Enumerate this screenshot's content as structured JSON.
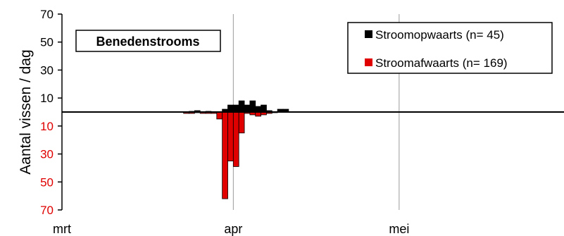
{
  "chart_data": {
    "type": "bar",
    "title": "Benedenstrooms",
    "ylabel": "Aantal vissen / dag",
    "ylim": [
      -70,
      70
    ],
    "y_ticks": [
      {
        "value": 70,
        "label": "70",
        "color": "#000000"
      },
      {
        "value": 50,
        "label": "50",
        "color": "#000000"
      },
      {
        "value": 30,
        "label": "30",
        "color": "#000000"
      },
      {
        "value": 10,
        "label": "10",
        "color": "#000000"
      },
      {
        "value": -10,
        "label": "10",
        "color": "#e00000"
      },
      {
        "value": -30,
        "label": "30",
        "color": "#e00000"
      },
      {
        "value": -50,
        "label": "50",
        "color": "#e00000"
      },
      {
        "value": -70,
        "label": "70",
        "color": "#e00000"
      }
    ],
    "x_ticks": [
      {
        "day": 0,
        "label": "mrt"
      },
      {
        "day": 31,
        "label": "apr"
      },
      {
        "day": 61,
        "label": "mei"
      }
    ],
    "xlim": [
      0,
      92
    ],
    "legend_position": "top-right",
    "series": [
      {
        "name": "Stroomopwaarts (n= 45)",
        "color": "#000000",
        "direction": "up",
        "points": [
          {
            "day": 23,
            "value": 0.5
          },
          {
            "day": 24,
            "value": 1
          },
          {
            "day": 26,
            "value": 0.5
          },
          {
            "day": 29,
            "value": 2
          },
          {
            "day": 30,
            "value": 5
          },
          {
            "day": 31,
            "value": 5
          },
          {
            "day": 32,
            "value": 8
          },
          {
            "day": 33,
            "value": 5
          },
          {
            "day": 34,
            "value": 8
          },
          {
            "day": 35,
            "value": 4
          },
          {
            "day": 36,
            "value": 5
          },
          {
            "day": 37,
            "value": 1
          },
          {
            "day": 39,
            "value": 2
          },
          {
            "day": 40,
            "value": 2
          }
        ]
      },
      {
        "name": "Stroomafwaarts (n= 169)",
        "color": "#e00000",
        "direction": "down",
        "points": [
          {
            "day": 22,
            "value": 1
          },
          {
            "day": 23,
            "value": 1
          },
          {
            "day": 24,
            "value": 0.5
          },
          {
            "day": 25,
            "value": 1
          },
          {
            "day": 26,
            "value": 1
          },
          {
            "day": 27,
            "value": 1
          },
          {
            "day": 28,
            "value": 5
          },
          {
            "day": 29,
            "value": 62
          },
          {
            "day": 30,
            "value": 35
          },
          {
            "day": 31,
            "value": 39
          },
          {
            "day": 32,
            "value": 15
          },
          {
            "day": 33,
            "value": 1
          },
          {
            "day": 34,
            "value": 2
          },
          {
            "day": 35,
            "value": 3
          },
          {
            "day": 36,
            "value": 2
          },
          {
            "day": 37,
            "value": 1
          },
          {
            "day": 38,
            "value": 0.5
          }
        ]
      }
    ]
  }
}
